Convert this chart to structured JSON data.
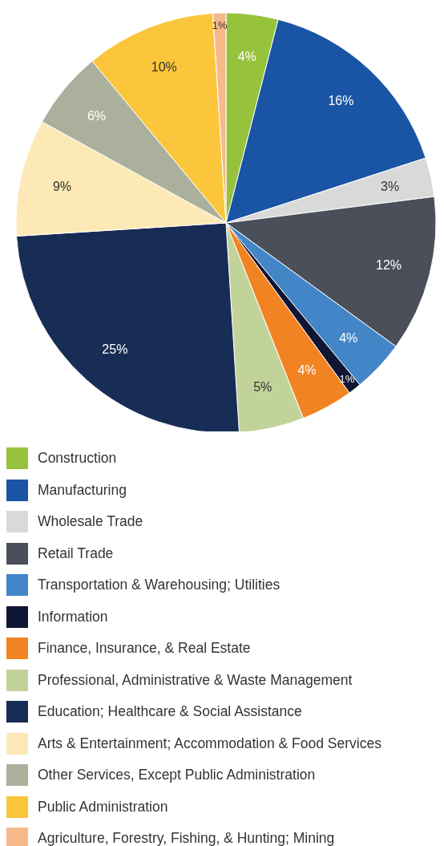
{
  "chart_data": {
    "type": "pie",
    "categories": [
      "Construction",
      "Manufacturing",
      "Wholesale Trade",
      "Retail Trade",
      "Transportation & Warehousing; Utilities",
      "Information",
      "Finance, Insurance, & Real Estate",
      "Professional, Administrative & Waste Management",
      "Education; Healthcare & Social Assistance",
      "Arts & Entertainment; Accommodation & Food Services",
      "Other Services, Except Public Administration",
      "Public Administration",
      "Agriculture, Forestry, Fishing, & Hunting; Mining"
    ],
    "values": [
      4,
      16,
      3,
      12,
      4,
      1,
      4,
      5,
      25,
      9,
      6,
      10,
      1
    ],
    "value_labels": [
      "4%",
      "16%",
      "3%",
      "12%",
      "4%",
      "1%",
      "4%",
      "5%",
      "25%",
      "9%",
      "6%",
      "10%",
      "1%"
    ],
    "colors": [
      "#97c23c",
      "#1a55a5",
      "#d9d9d9",
      "#4a4f5a",
      "#4286c8",
      "#0f1633",
      "#f28322",
      "#c2d39a",
      "#182d55",
      "#fde9b5",
      "#abb09c",
      "#fbc63c",
      "#f8b98a"
    ],
    "legend": "bottom"
  }
}
